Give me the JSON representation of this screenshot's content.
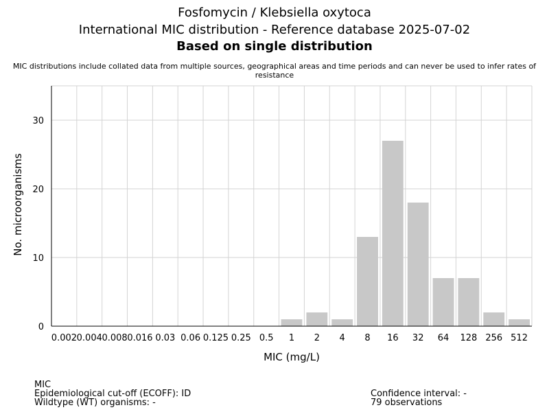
{
  "header": {
    "title": "Fosfomycin / Klebsiella oxytoca",
    "subtitle": "International MIC distribution - Reference database 2025-07-02",
    "method": "Based on single distribution",
    "disclaimer": "MIC distributions include collated data from multiple sources, geographical areas and time periods and can never be used to infer rates of resistance"
  },
  "chart_data": {
    "type": "bar",
    "categories": [
      "0.002",
      "0.004",
      "0.008",
      "0.016",
      "0.03",
      "0.06",
      "0.125",
      "0.25",
      "0.5",
      "1",
      "2",
      "4",
      "8",
      "16",
      "32",
      "64",
      "128",
      "256",
      "512"
    ],
    "values": [
      0,
      0,
      0,
      0,
      0,
      0,
      0,
      0,
      0,
      1,
      2,
      1,
      13,
      27,
      18,
      7,
      7,
      2,
      1
    ],
    "xlabel": "MIC (mg/L)",
    "ylabel": "No. microorganisms",
    "ylim": [
      0,
      35
    ],
    "yticks": [
      0,
      10,
      20,
      30
    ],
    "grid": true,
    "bar_color": "#c8c8c8",
    "grid_color": "#d3d3d3"
  },
  "footer": {
    "left": {
      "line1": "MIC",
      "line2": "Epidemiological cut-off (ECOFF): ID",
      "line3": "Wildtype (WT) organisms:  -"
    },
    "right": {
      "line1": "Confidence interval: -",
      "line2": "79 observations"
    }
  }
}
